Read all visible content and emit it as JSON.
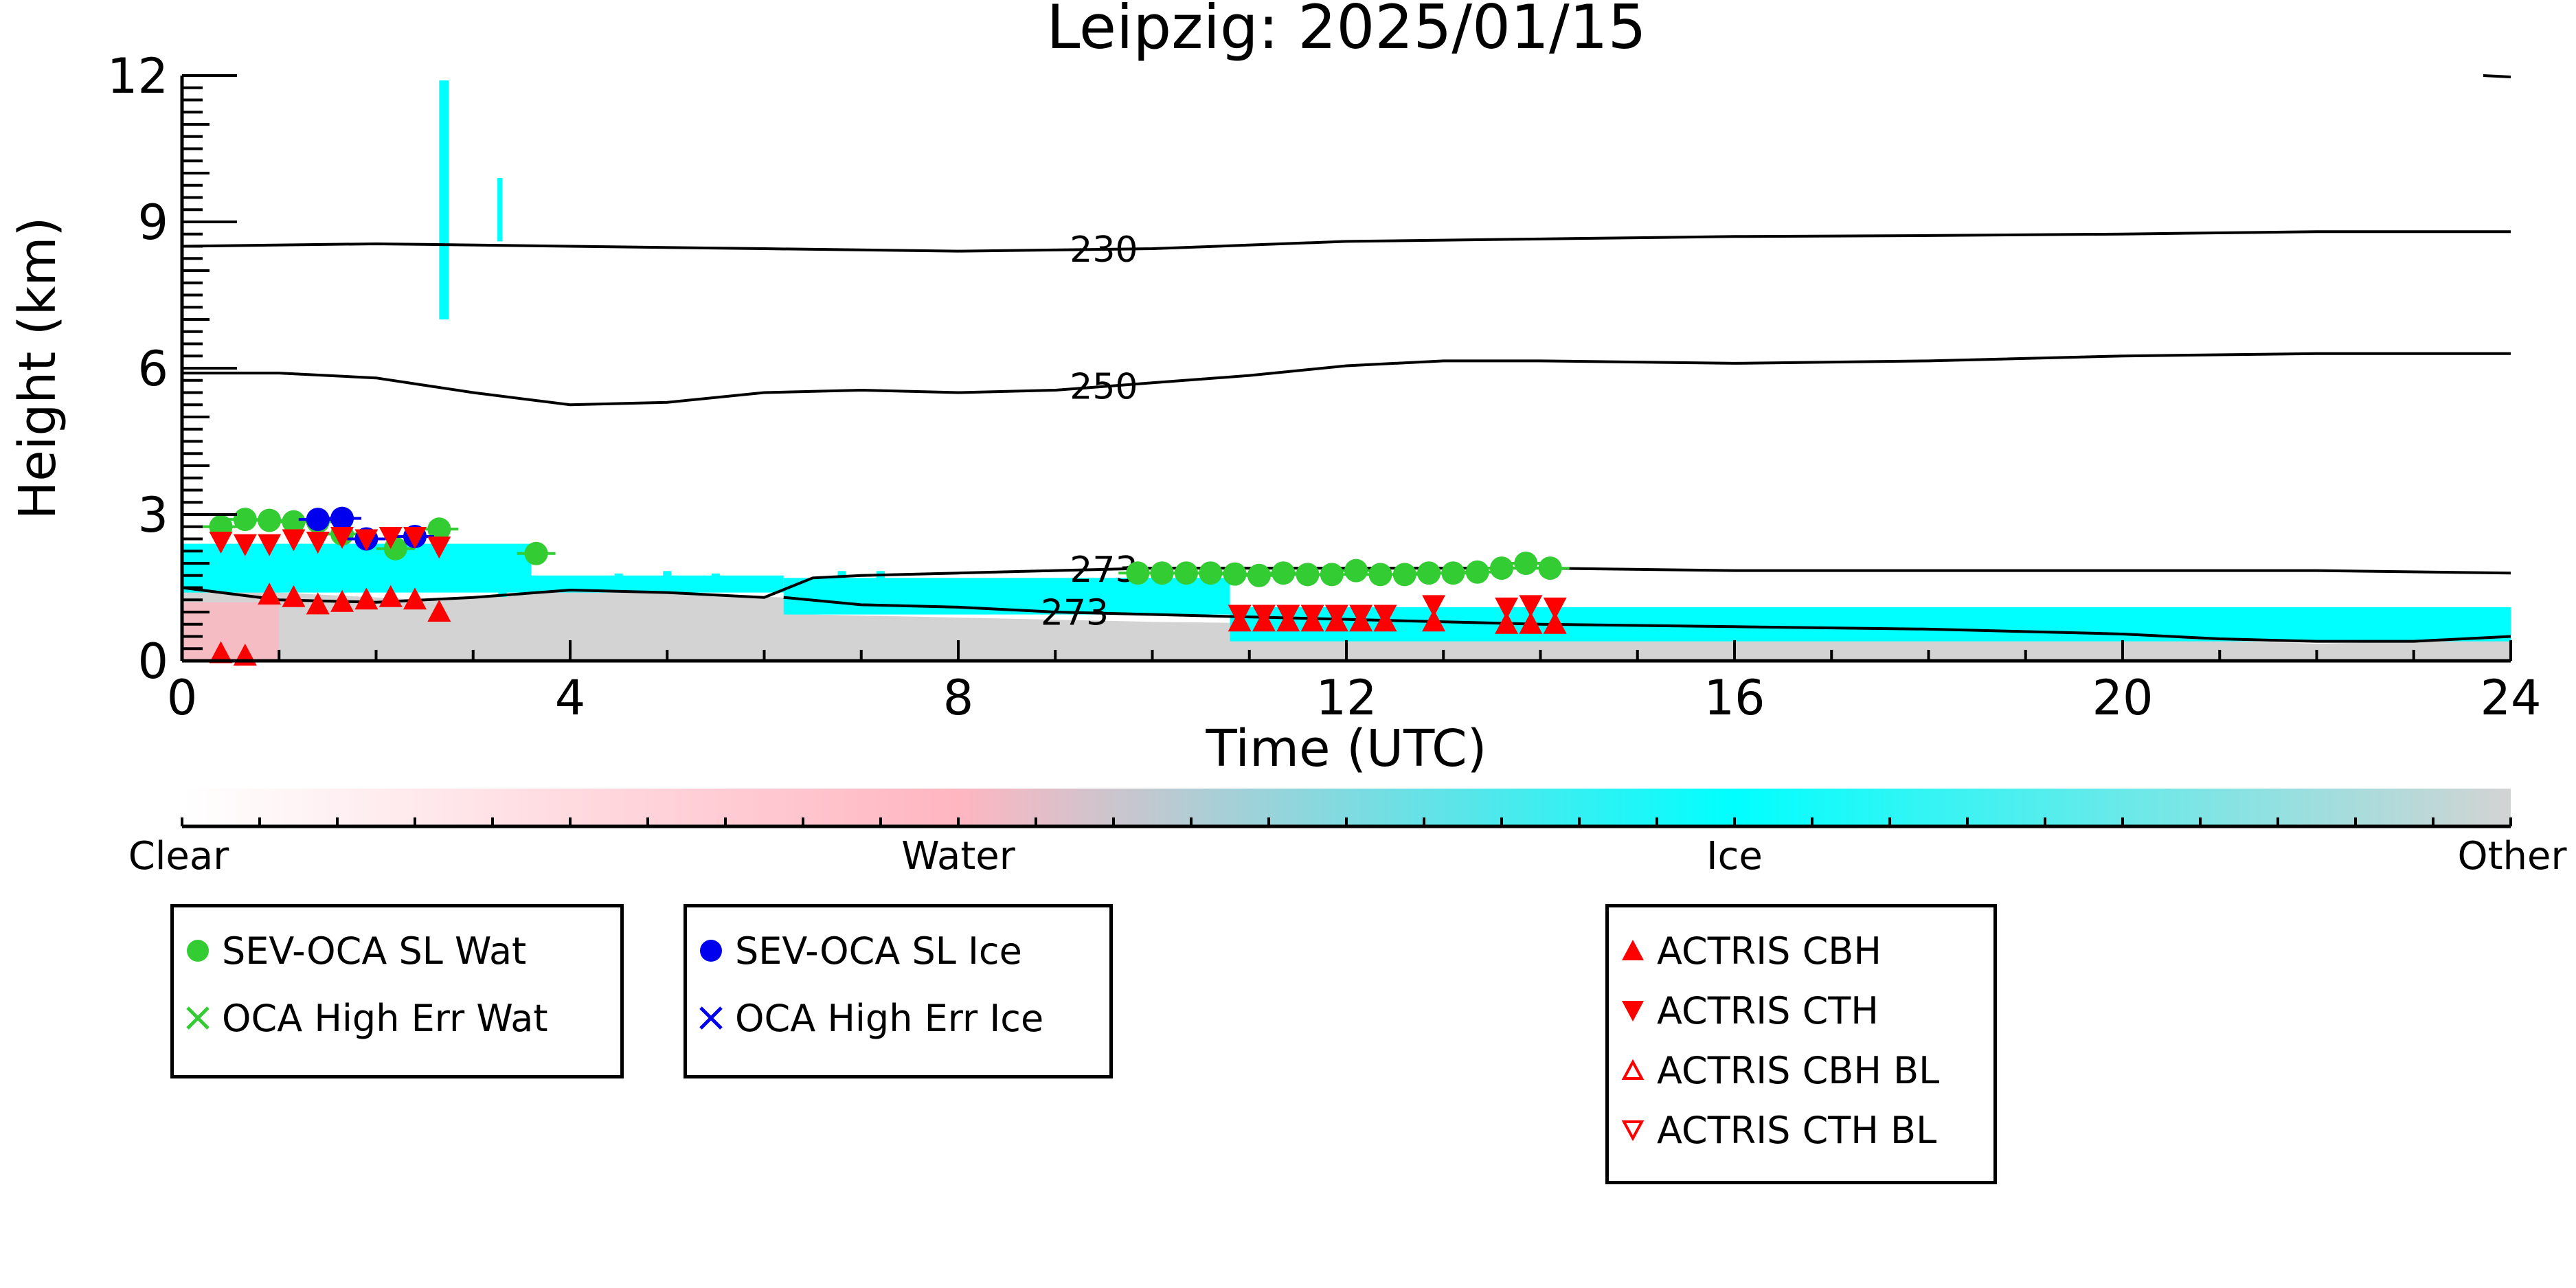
{
  "chart_data": {
    "type": "scatter",
    "title": "Leipzig: 2025/01/15",
    "xlabel": "Time (UTC)",
    "ylabel": "Height (km)",
    "xlim": [
      0,
      24
    ],
    "ylim": [
      0,
      12
    ],
    "xticks": [
      "0",
      "4",
      "8",
      "12",
      "16",
      "20",
      "24"
    ],
    "yticks": [
      "0",
      "3",
      "6",
      "9",
      "12"
    ],
    "grid": false,
    "background_classes": {
      "colors": {
        "clear": "#ffffff",
        "water": "#ffb6c1",
        "ice": "#00ffff",
        "other": "#d3d3d3"
      },
      "ice_regions": [
        {
          "x": [
            0.0,
            3.6
          ],
          "ybot": 1.4,
          "ytop": 2.4
        },
        {
          "x": [
            2.65,
            2.75
          ],
          "ybot": 7.0,
          "ytop": 11.9
        },
        {
          "x": [
            3.25,
            3.3
          ],
          "ybot": 8.6,
          "ytop": 9.9
        },
        {
          "x": [
            3.6,
            6.2
          ],
          "ybot": 1.4,
          "ytop": 1.75
        },
        {
          "x": [
            6.2,
            10.8
          ],
          "ybot": 0.95,
          "ytop": 1.7
        },
        {
          "x": [
            10.8,
            24.0
          ],
          "ybot": 0.4,
          "ytop": 1.1
        }
      ],
      "other_region": {
        "x": [
          0.0,
          24.0
        ],
        "top_profile": [
          [
            0,
            1.5
          ],
          [
            2.5,
            1.25
          ],
          [
            4,
            1.45
          ],
          [
            6.2,
            1.3
          ],
          [
            6.5,
            0.95
          ],
          [
            10,
            0.8
          ],
          [
            14,
            0.7
          ],
          [
            18,
            0.6
          ],
          [
            22,
            0.35
          ],
          [
            24,
            0.45
          ]
        ]
      },
      "water_region": {
        "x": [
          0.0,
          1.0
        ],
        "ybot": 0.0,
        "ytop": 1.2
      }
    },
    "contours": [
      {
        "label": "230",
        "label_x": 9.5,
        "x": [
          0,
          2,
          4,
          6,
          8,
          10,
          12,
          14,
          16,
          18,
          20,
          22,
          24
        ],
        "y": [
          8.5,
          8.55,
          8.5,
          8.45,
          8.4,
          8.45,
          8.6,
          8.65,
          8.7,
          8.72,
          8.75,
          8.8,
          8.8
        ]
      },
      {
        "label": "250",
        "label_x": 9.5,
        "x": [
          0,
          1,
          2,
          3,
          4,
          5,
          6,
          7,
          8,
          9,
          10,
          11,
          12,
          13,
          14,
          16,
          18,
          20,
          22,
          24
        ],
        "y": [
          5.9,
          5.9,
          5.8,
          5.5,
          5.25,
          5.3,
          5.5,
          5.55,
          5.5,
          5.55,
          5.7,
          5.85,
          6.05,
          6.15,
          6.15,
          6.1,
          6.15,
          6.25,
          6.3,
          6.3
        ]
      },
      {
        "label": "273",
        "label_x": 9.5,
        "x": [
          0,
          1,
          2,
          3,
          4,
          5,
          6,
          6.5,
          7,
          8,
          9,
          10,
          12,
          14,
          16,
          18,
          20,
          22,
          24
        ],
        "y": [
          1.5,
          1.25,
          1.2,
          1.3,
          1.45,
          1.4,
          1.3,
          1.7,
          1.75,
          1.8,
          1.85,
          1.9,
          1.9,
          1.9,
          1.85,
          1.85,
          1.85,
          1.85,
          1.8
        ]
      },
      {
        "label": "273",
        "label_x": 9.2,
        "x": [
          6.2,
          7,
          8,
          9,
          10,
          12,
          14,
          16,
          18,
          20,
          21,
          22,
          23,
          24
        ],
        "y": [
          1.3,
          1.15,
          1.1,
          1.0,
          0.95,
          0.85,
          0.75,
          0.7,
          0.65,
          0.55,
          0.45,
          0.4,
          0.4,
          0.5
        ]
      }
    ],
    "series": [
      {
        "name": "SEV-OCA SL Wat",
        "marker": "circle",
        "color": "#33cc33",
        "x": [
          0.4,
          0.65,
          0.9,
          1.15,
          1.4,
          1.65,
          2.2,
          2.65,
          3.65,
          9.85,
          10.1,
          10.35,
          10.6,
          10.85,
          11.1,
          11.35,
          11.6,
          11.85,
          12.1,
          12.35,
          12.6,
          12.85,
          13.1,
          13.35,
          13.6,
          13.85,
          14.1
        ],
        "y": [
          2.75,
          2.9,
          2.88,
          2.85,
          2.85,
          2.6,
          2.3,
          2.7,
          2.2,
          1.8,
          1.8,
          1.8,
          1.8,
          1.78,
          1.75,
          1.8,
          1.77,
          1.77,
          1.85,
          1.77,
          1.77,
          1.8,
          1.8,
          1.82,
          1.9,
          2.0,
          1.9
        ]
      },
      {
        "name": "SEV-OCA SL Ice",
        "marker": "circle",
        "color": "#0000ee",
        "x": [
          1.4,
          1.65,
          1.9,
          2.4
        ],
        "y": [
          2.9,
          2.92,
          2.5,
          2.55
        ]
      },
      {
        "name": "ACTRIS CBH",
        "marker": "triangle-up",
        "color": "#ff0000",
        "x": [
          0.4,
          0.65,
          0.9,
          1.15,
          1.4,
          1.65,
          1.9,
          2.15,
          2.4,
          2.65,
          10.9,
          11.15,
          11.4,
          11.65,
          11.9,
          12.15,
          12.4,
          12.9,
          13.65,
          13.9,
          14.15
        ],
        "y": [
          0.15,
          0.1,
          1.35,
          1.3,
          1.15,
          1.2,
          1.25,
          1.3,
          1.25,
          1.0,
          0.8,
          0.8,
          0.8,
          0.8,
          0.8,
          0.8,
          0.8,
          0.8,
          0.75,
          0.75,
          0.75
        ]
      },
      {
        "name": "ACTRIS CTH",
        "marker": "triangle-down",
        "color": "#ff0000",
        "x": [
          0.4,
          0.65,
          0.9,
          1.15,
          1.4,
          1.65,
          1.9,
          2.15,
          2.4,
          2.65,
          10.9,
          11.15,
          11.4,
          11.65,
          11.9,
          12.15,
          12.4,
          12.9,
          13.65,
          13.9,
          14.15
        ],
        "y": [
          2.45,
          2.4,
          2.4,
          2.5,
          2.45,
          2.55,
          2.5,
          2.55,
          2.55,
          2.35,
          0.95,
          0.95,
          0.95,
          0.95,
          0.95,
          0.95,
          0.95,
          1.15,
          1.1,
          1.15,
          1.1
        ]
      }
    ],
    "overlay_points": {
      "ice_lidar_bits": [
        [
          3.3,
          1.45
        ],
        [
          4.5,
          1.65
        ],
        [
          5.0,
          1.7
        ],
        [
          5.5,
          1.65
        ],
        [
          6.8,
          1.7
        ],
        [
          7.2,
          1.7
        ]
      ]
    },
    "colorbar": {
      "labels": [
        "Clear",
        "Water",
        "Ice",
        "Other"
      ],
      "stops": [
        "#ffffff",
        "#ffb6c1",
        "#00ffff",
        "#d3d3d3"
      ]
    },
    "legends": [
      {
        "items": [
          {
            "label": "SEV-OCA SL Wat",
            "symbol": "circle",
            "color": "#33cc33"
          },
          {
            "label": "OCA High Err Wat",
            "symbol": "x",
            "color": "#33cc33"
          }
        ]
      },
      {
        "items": [
          {
            "label": "SEV-OCA SL Ice",
            "symbol": "circle",
            "color": "#0000ee"
          },
          {
            "label": "OCA High Err Ice",
            "symbol": "x",
            "color": "#0000ee"
          }
        ]
      },
      {
        "items": [
          {
            "label": "ACTRIS CBH",
            "symbol": "triangle-up",
            "color": "#ff0000"
          },
          {
            "label": "ACTRIS CTH",
            "symbol": "triangle-down",
            "color": "#ff0000"
          },
          {
            "label": "ACTRIS CBH BL",
            "symbol": "triangle-up-open",
            "color": "#ff0000"
          },
          {
            "label": "ACTRIS CTH BL",
            "symbol": "triangle-down-open",
            "color": "#ff0000"
          }
        ]
      }
    ]
  }
}
